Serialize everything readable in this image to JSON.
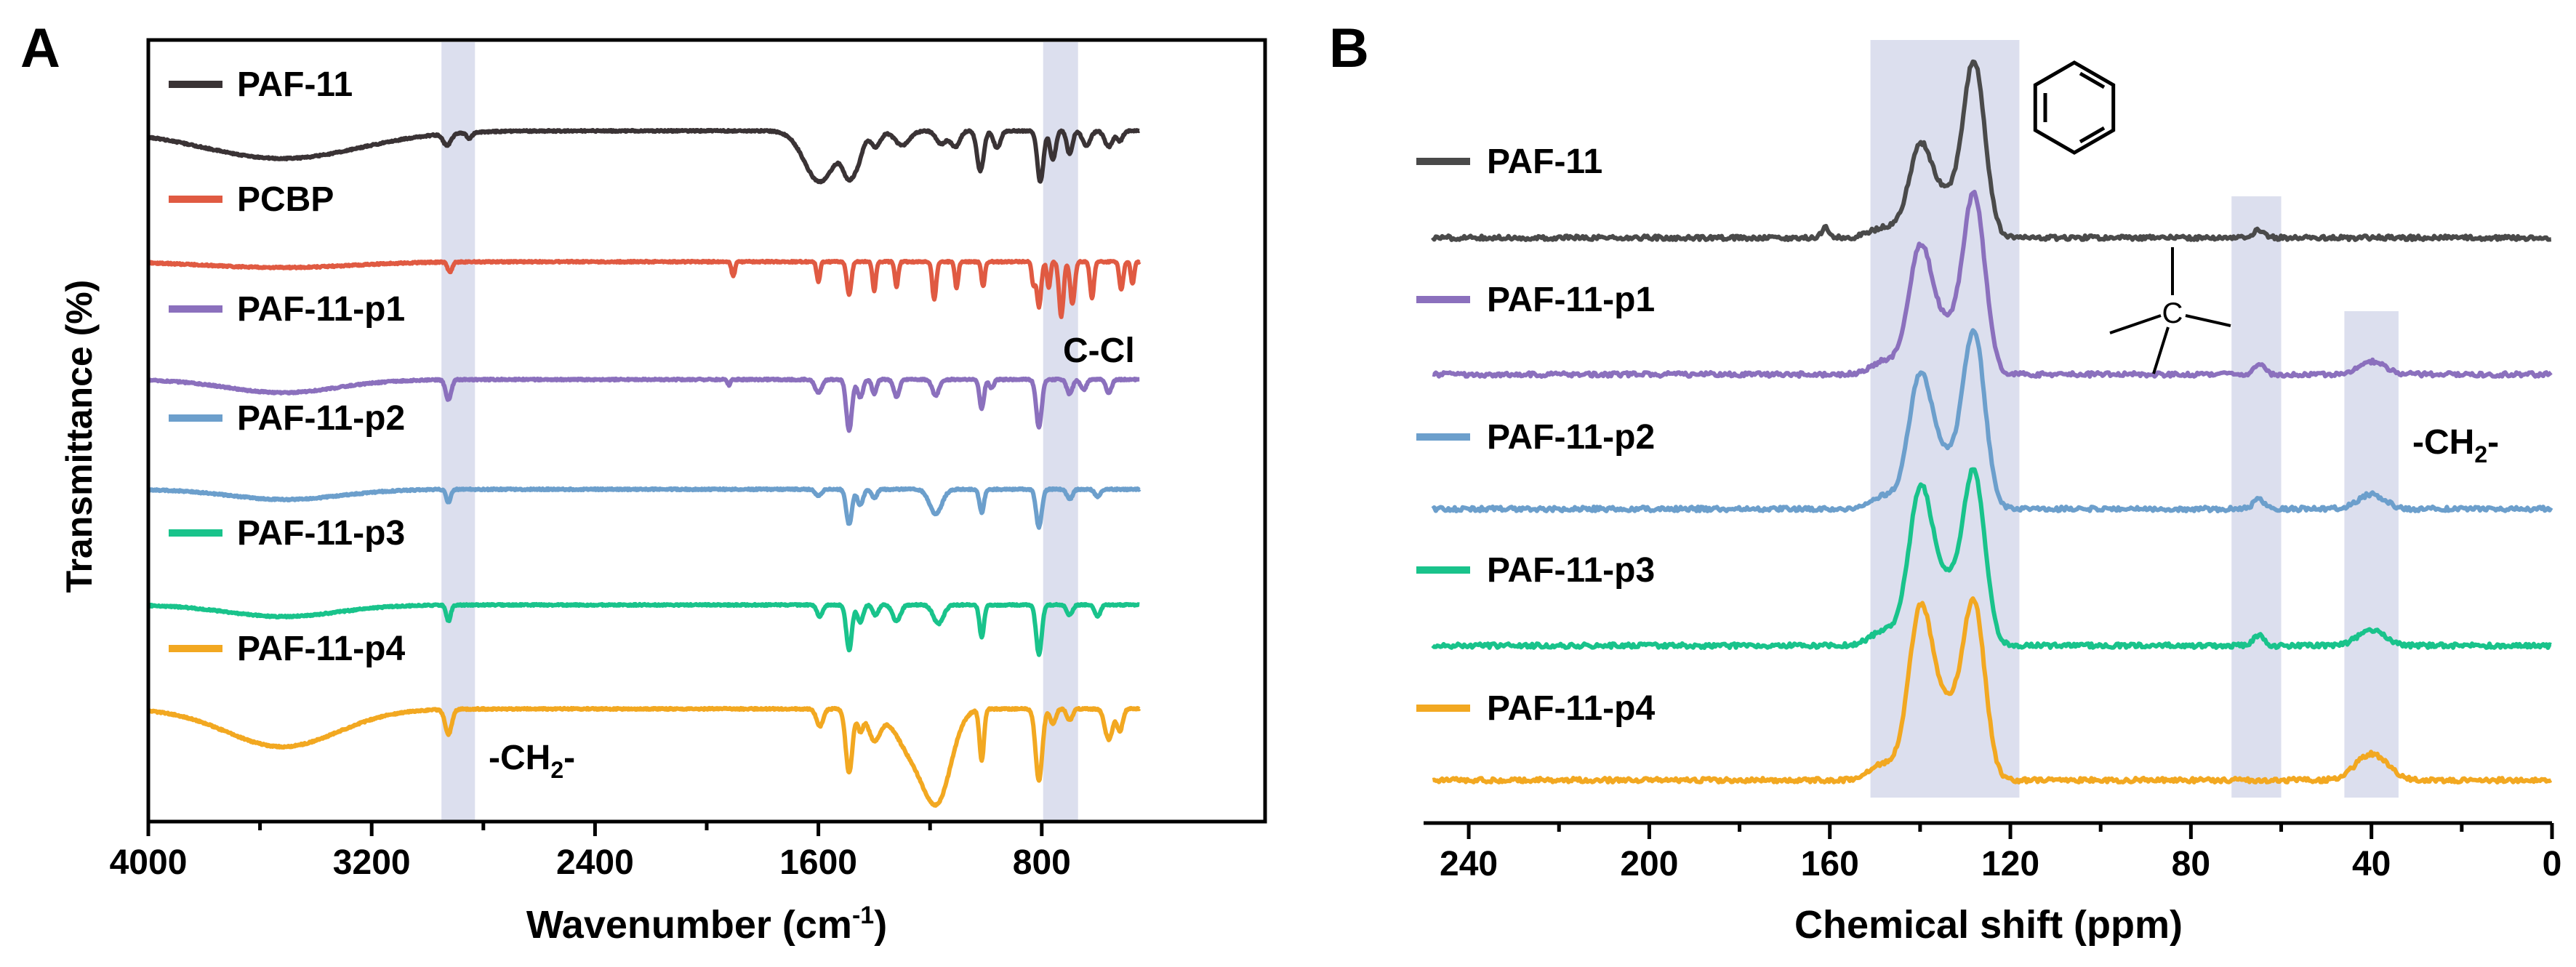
{
  "chart_data": [
    {
      "panel": "A",
      "type": "line",
      "xlabel": "Wavenumber (cm",
      "xlabel_sup": "-1",
      "xlabel_end": ")",
      "ylabel": "Transmittance (%)",
      "xlim": [
        4000,
        0
      ],
      "x_direction": "reversed",
      "y_ticks": "none",
      "xticks": [
        {
          "value": 4000,
          "label": "4000"
        },
        {
          "value": 3200,
          "label": "3200"
        },
        {
          "value": 2400,
          "label": "2400"
        },
        {
          "value": 1600,
          "label": "1600"
        },
        {
          "value": 800,
          "label": "800"
        }
      ],
      "highlight_bands": [
        [
          2950,
          2830
        ],
        [
          795,
          670
        ]
      ],
      "annotations": [
        {
          "text": "-CH",
          "sub": "2",
          "end": "-",
          "x": 2780
        },
        {
          "text": "C-Cl",
          "x": 940
        }
      ],
      "series": [
        {
          "name": "PAF-11",
          "color": "#3a3335",
          "baseline_offset": 0
        },
        {
          "name": "PCBP",
          "color": "#e05a42",
          "baseline_offset": 1
        },
        {
          "name": "PAF-11-p1",
          "color": "#8b70bd",
          "baseline_offset": 2
        },
        {
          "name": "PAF-11-p2",
          "color": "#6c9fcc",
          "baseline_offset": 3
        },
        {
          "name": "PAF-11-p3",
          "color": "#19c38b",
          "baseline_offset": 4
        },
        {
          "name": "PAF-11-p4",
          "color": "#f2a821",
          "baseline_offset": 5
        }
      ]
    },
    {
      "panel": "B",
      "type": "line",
      "xlabel": "Chemical shift (ppm)",
      "xlim": [
        250,
        0
      ],
      "x_direction": "reversed",
      "y_ticks": "none",
      "xticks": [
        {
          "value": 240,
          "label": "240"
        },
        {
          "value": 200,
          "label": "200"
        },
        {
          "value": 160,
          "label": "160"
        },
        {
          "value": 120,
          "label": "120"
        },
        {
          "value": 80,
          "label": "80"
        },
        {
          "value": 40,
          "label": "40"
        },
        {
          "value": 0,
          "label": "0"
        }
      ],
      "highlight_bands": [
        [
          151,
          118
        ],
        [
          71,
          60
        ],
        [
          46,
          34
        ]
      ],
      "annotations": [
        {
          "text": "-CH",
          "sub": "2",
          "end": "-"
        },
        {
          "text": "C",
          "type": "quaternary-carbon-structure"
        },
        {
          "type": "benzene-ring"
        }
      ],
      "peaks_ppm": [
        140,
        128,
        65,
        40
      ],
      "series": [
        {
          "name": "PAF-11",
          "color": "#4a4a4a",
          "baseline_offset": 0
        },
        {
          "name": "PAF-11-p1",
          "color": "#8b70bd",
          "baseline_offset": 1
        },
        {
          "name": "PAF-11-p2",
          "color": "#6c9fcc",
          "baseline_offset": 2
        },
        {
          "name": "PAF-11-p3",
          "color": "#19c38b",
          "baseline_offset": 3
        },
        {
          "name": "PAF-11-p4",
          "color": "#f2a821",
          "baseline_offset": 4
        }
      ]
    }
  ],
  "panel_labels": [
    "A",
    "B"
  ]
}
